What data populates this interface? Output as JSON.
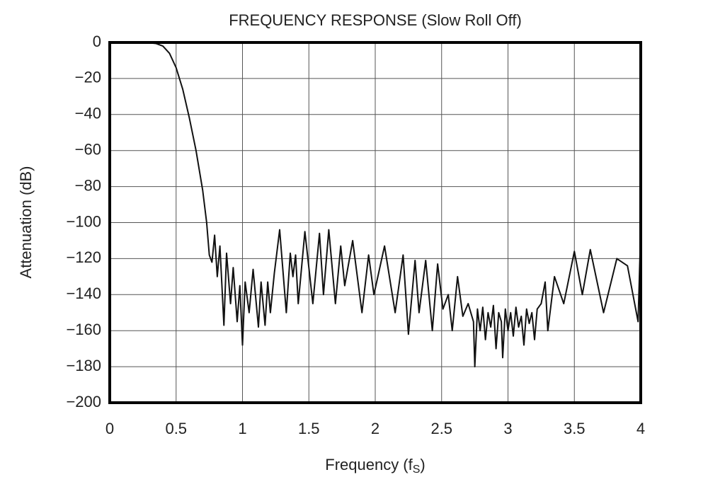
{
  "chart_data": {
    "type": "line",
    "title": "FREQUENCY RESPONSE (Slow Roll Off)",
    "xlabel": [
      "Frequency (f",
      "S",
      ")"
    ],
    "ylabel": "Attenuation (dB)",
    "xlim": [
      0,
      4
    ],
    "ylim": [
      -200,
      0
    ],
    "xticks": [
      0,
      0.5,
      1,
      1.5,
      2,
      2.5,
      3,
      3.5,
      4
    ],
    "yticks": [
      0,
      {
        "value": -20,
        "label": "−20"
      },
      {
        "value": -40,
        "label": "−40"
      },
      {
        "value": -60,
        "label": "−60"
      },
      {
        "value": -80,
        "label": "−80"
      },
      {
        "value": -100,
        "label": "−100"
      },
      {
        "value": -120,
        "label": "−120"
      },
      {
        "value": -140,
        "label": "−140"
      },
      {
        "value": -160,
        "label": "−160"
      },
      {
        "value": -180,
        "label": "−180"
      },
      {
        "value": -200,
        "label": "−200"
      }
    ],
    "grid": true,
    "series": [
      {
        "color": "#111111",
        "x": [
          0,
          0.1,
          0.2,
          0.3,
          0.35,
          0.4,
          0.45,
          0.5,
          0.55,
          0.6,
          0.65,
          0.7,
          0.73,
          0.75,
          0.77,
          0.79,
          0.81,
          0.83,
          0.86,
          0.88,
          0.91,
          0.93,
          0.96,
          0.98,
          1.0,
          1.02,
          1.05,
          1.08,
          1.12,
          1.14,
          1.17,
          1.19,
          1.21,
          1.24,
          1.28,
          1.33,
          1.36,
          1.38,
          1.4,
          1.42,
          1.47,
          1.53,
          1.58,
          1.61,
          1.65,
          1.7,
          1.74,
          1.77,
          1.83,
          1.9,
          1.95,
          1.99,
          2.07,
          2.15,
          2.21,
          2.25,
          2.3,
          2.33,
          2.38,
          2.43,
          2.47,
          2.51,
          2.55,
          2.58,
          2.62,
          2.66,
          2.7,
          2.72,
          2.74,
          2.75,
          2.77,
          2.79,
          2.81,
          2.83,
          2.85,
          2.87,
          2.89,
          2.91,
          2.93,
          2.95,
          2.96,
          2.98,
          3.0,
          3.02,
          3.04,
          3.06,
          3.08,
          3.1,
          3.12,
          3.14,
          3.16,
          3.18,
          3.2,
          3.22,
          3.25,
          3.28,
          3.3,
          3.35,
          3.42,
          3.5,
          3.56,
          3.62,
          3.72,
          3.82,
          3.9,
          3.98,
          4.0
        ],
        "values": [
          0,
          0,
          0,
          -0.2,
          -0.6,
          -2,
          -6,
          -14,
          -26,
          -42,
          -60,
          -82,
          -100,
          -118,
          -122,
          -107,
          -130,
          -113,
          -157,
          -117,
          -145,
          -125,
          -155,
          -135,
          -168,
          -133,
          -150,
          -126,
          -158,
          -133,
          -157,
          -133,
          -150,
          -128,
          -104,
          -150,
          -117,
          -130,
          -118,
          -145,
          -105,
          -145,
          -106,
          -140,
          -104,
          -145,
          -113,
          -135,
          -110,
          -150,
          -118,
          -140,
          -113,
          -150,
          -118,
          -162,
          -121,
          -150,
          -121,
          -160,
          -123,
          -148,
          -140,
          -160,
          -130,
          -152,
          -145,
          -150,
          -155,
          -180,
          -148,
          -160,
          -147,
          -165,
          -150,
          -158,
          -146,
          -170,
          -150,
          -155,
          -175,
          -148,
          -160,
          -150,
          -163,
          -147,
          -158,
          -152,
          -168,
          -148,
          -156,
          -150,
          -165,
          -148,
          -145,
          -133,
          -160,
          -130,
          -145,
          -116,
          -140,
          -115,
          -150,
          -120,
          -124,
          -155,
          -104
        ]
      }
    ]
  }
}
